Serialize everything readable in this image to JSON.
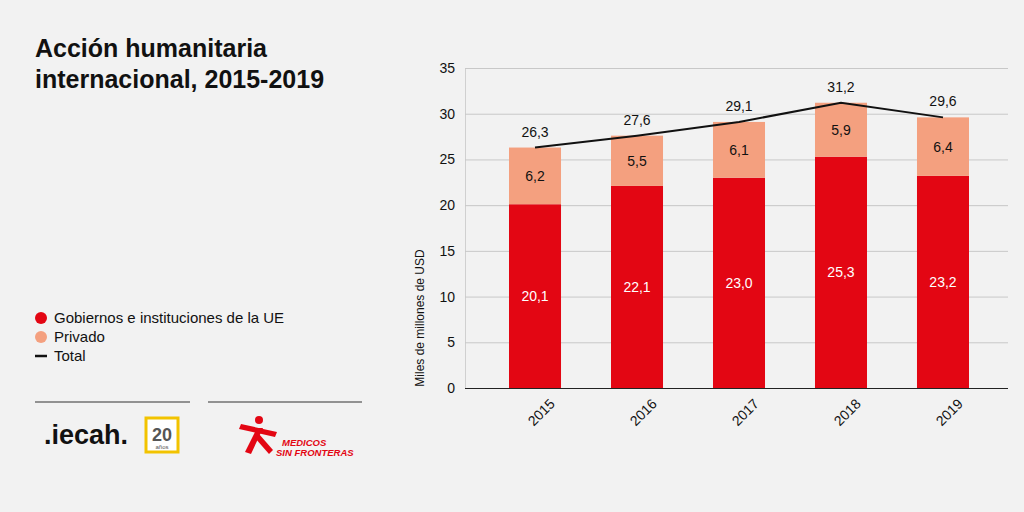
{
  "chart_data": {
    "type": "bar",
    "title": "Acción humanitaria internacional, 2015-2019",
    "y_label": "Miles de millones de USD",
    "categories": [
      "2015",
      "2016",
      "2017",
      "2018",
      "2019"
    ],
    "series": [
      {
        "name": "Gobiernos e instituciones de la UE",
        "type": "bar",
        "color": "#e30613",
        "values": [
          20.1,
          22.1,
          23.0,
          25.3,
          23.2
        ],
        "value_labels": [
          "20,1",
          "22,1",
          "23,0",
          "25,3",
          "23,2"
        ]
      },
      {
        "name": "Privado",
        "type": "bar",
        "color": "#f4a07f",
        "values": [
          6.2,
          5.5,
          6.1,
          5.9,
          6.4
        ],
        "value_labels": [
          "6,2",
          "5,5",
          "6,1",
          "5,9",
          "6,4"
        ]
      },
      {
        "name": "Total",
        "type": "line",
        "color": "#111111",
        "values": [
          26.3,
          27.6,
          29.1,
          31.2,
          29.6
        ],
        "value_labels": [
          "26,3",
          "27,6",
          "29,1",
          "31,2",
          "29,6"
        ]
      }
    ],
    "stacked": true,
    "data_labels": true,
    "grid": true,
    "legend": "left",
    "ylim": [
      0,
      35
    ],
    "yticks": [
      0,
      5,
      10,
      15,
      20,
      25,
      30,
      35
    ],
    "annotations": [
      ".iecah.",
      "20",
      "años",
      "MEDICOS",
      "SIN FRONTERAS"
    ]
  }
}
